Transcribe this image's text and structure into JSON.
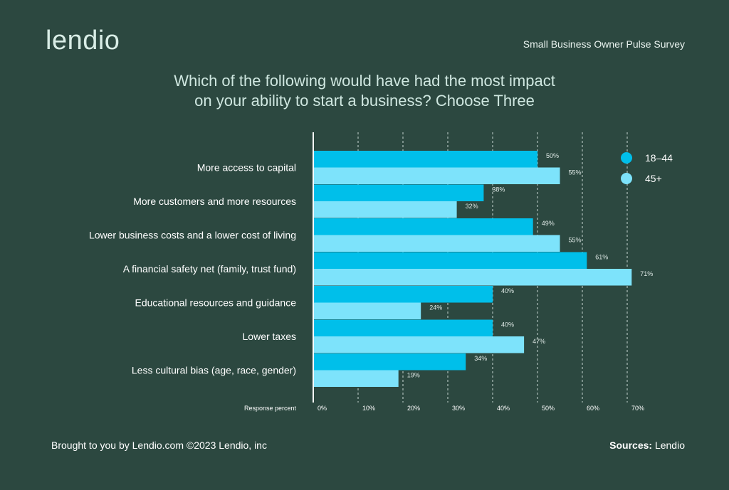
{
  "header": {
    "logo": "lendio",
    "survey_name": "Small Business Owner Pulse Survey"
  },
  "chart_data": {
    "type": "bar",
    "orientation": "horizontal",
    "title_lines": [
      "Which of the following would have had the most impact",
      "on your ability to start a business? Choose Three"
    ],
    "categories": [
      "More access to capital",
      "More customers and more resources",
      "Lower business costs and a lower cost of living",
      "A financial safety net (family, trust fund)",
      "Educational resources and guidance",
      "Lower taxes",
      "Less cultural bias (age, race, gender)"
    ],
    "series": [
      {
        "name": "18–44",
        "color": "#00bfea",
        "values": [
          50,
          38,
          49,
          61,
          40,
          40,
          34
        ]
      },
      {
        "name": "45+",
        "color": "#7de3fb",
        "values": [
          55,
          32,
          55,
          71,
          24,
          47,
          19
        ]
      }
    ],
    "xlabel": "Response percent",
    "xlim": [
      0,
      70
    ],
    "xticks": [
      0,
      10,
      20,
      30,
      40,
      50,
      60,
      70
    ],
    "tick_suffix": "%",
    "value_suffix": "%",
    "grid": "vertical dashed",
    "legend_position": "top-right"
  },
  "footer": {
    "brought_by": "Brought to you by Lendio.com ©2023 Lendio, inc",
    "sources_label": "Sources:",
    "sources_value": " Lendio"
  }
}
